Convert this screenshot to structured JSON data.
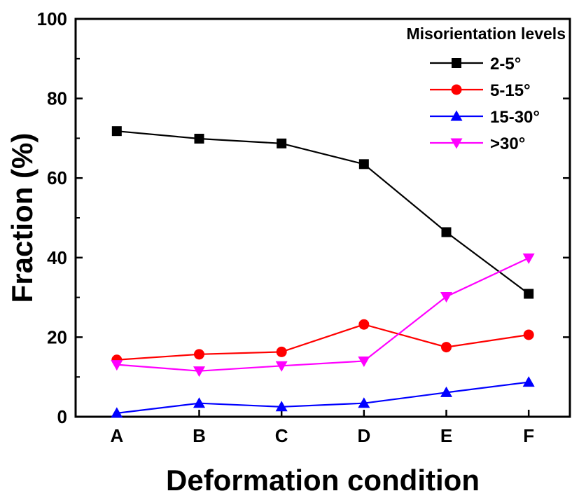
{
  "chart_data": {
    "type": "line",
    "xlabel": "Deformation condition",
    "ylabel": "Fraction (%)",
    "categories": [
      "A",
      "B",
      "C",
      "D",
      "E",
      "F"
    ],
    "ylim": [
      0,
      100
    ],
    "yticks": [
      0,
      20,
      40,
      60,
      80,
      100
    ],
    "grid": false,
    "legend": {
      "title": "Misorientation levels",
      "placement": "top-right"
    },
    "series": [
      {
        "name": "2-5°",
        "color": "#000000",
        "marker": "square",
        "values": [
          71.8,
          69.9,
          68.7,
          63.5,
          46.4,
          30.9
        ]
      },
      {
        "name": "5-15°",
        "color": "#ff0000",
        "marker": "circle",
        "values": [
          14.3,
          15.7,
          16.3,
          23.2,
          17.5,
          20.6
        ]
      },
      {
        "name": "15-30°",
        "color": "#0000ff",
        "marker": "triangle-up",
        "values": [
          0.9,
          3.4,
          2.5,
          3.4,
          6.1,
          8.7
        ]
      },
      {
        "name": ">30°",
        "color": "#ff00ff",
        "marker": "triangle-down",
        "values": [
          13.1,
          11.5,
          12.8,
          14.0,
          30.2,
          39.9
        ]
      }
    ]
  }
}
